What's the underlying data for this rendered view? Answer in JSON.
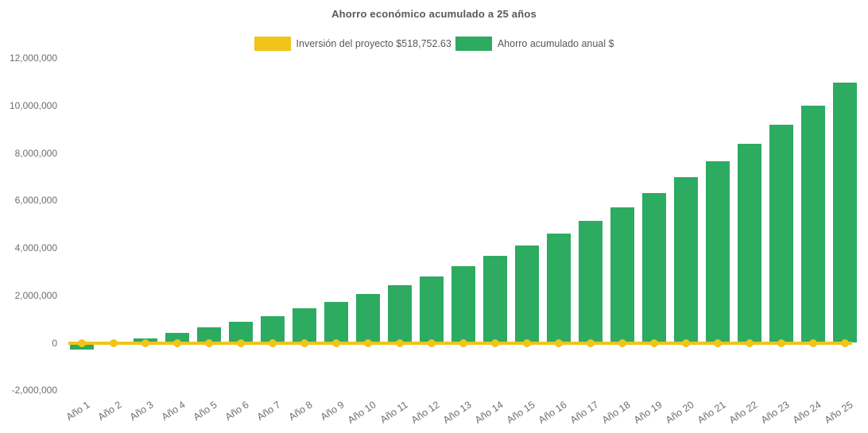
{
  "title": "Ahorro económico acumulado a 25 años",
  "legend": {
    "items": [
      {
        "label": "Inversión del proyecto $518,752.63",
        "color": "#F0C419"
      },
      {
        "label": "Ahorro acumulado anual $",
        "color": "#2DAB61"
      }
    ]
  },
  "chart_data": {
    "type": "combo",
    "title": "Ahorro económico acumulado a 25 años",
    "categories": [
      "Año 1",
      "Año 2",
      "Año 3",
      "Año 4",
      "Año 5",
      "Año 6",
      "Año 7",
      "Año 8",
      "Año 9",
      "Año 10",
      "Año 11",
      "Año 12",
      "Año 13",
      "Año 14",
      "Año 15",
      "Año 16",
      "Año 17",
      "Año 18",
      "Año 19",
      "Año 20",
      "Año 21",
      "Año 22",
      "Año 23",
      "Año 24",
      "Año 25"
    ],
    "series": [
      {
        "name": "Inversión del proyecto $518,752.63",
        "type": "line",
        "color": "#F0C419",
        "marker": "circle",
        "investment_amount": 518752.63,
        "values": [
          0,
          0,
          0,
          0,
          0,
          0,
          0,
          0,
          0,
          0,
          0,
          0,
          0,
          0,
          0,
          0,
          0,
          0,
          0,
          0,
          0,
          0,
          0,
          0,
          0
        ]
      },
      {
        "name": "Ahorro acumulado anual $",
        "type": "bar",
        "color": "#2DAB61",
        "values": [
          -280000,
          30000,
          190000,
          410000,
          660000,
          875000,
          1120000,
          1450000,
          1740000,
          2060000,
          2420000,
          2810000,
          3230000,
          3660000,
          4090000,
          4600000,
          5150000,
          5720000,
          6320000,
          6970000,
          7660000,
          8390000,
          9210000,
          10010000,
          10970000
        ]
      }
    ],
    "y_axis": {
      "min": -2000000,
      "max": 12000000,
      "tick_step": 2000000,
      "ticks": [
        {
          "value": 12000000,
          "label": "12,000,000"
        },
        {
          "value": 10000000,
          "label": "10,000,000"
        },
        {
          "value": 8000000,
          "label": "8,000,000"
        },
        {
          "value": 6000000,
          "label": "6,000,000"
        },
        {
          "value": 4000000,
          "label": "4,000,000"
        },
        {
          "value": 2000000,
          "label": "2,000,000"
        },
        {
          "value": 0,
          "label": "0"
        },
        {
          "value": -2000000,
          "label": "-2,000,000"
        }
      ]
    },
    "x_axis": {
      "label_rotation_deg": -34
    },
    "gridlines": false,
    "legend_position": "top"
  }
}
